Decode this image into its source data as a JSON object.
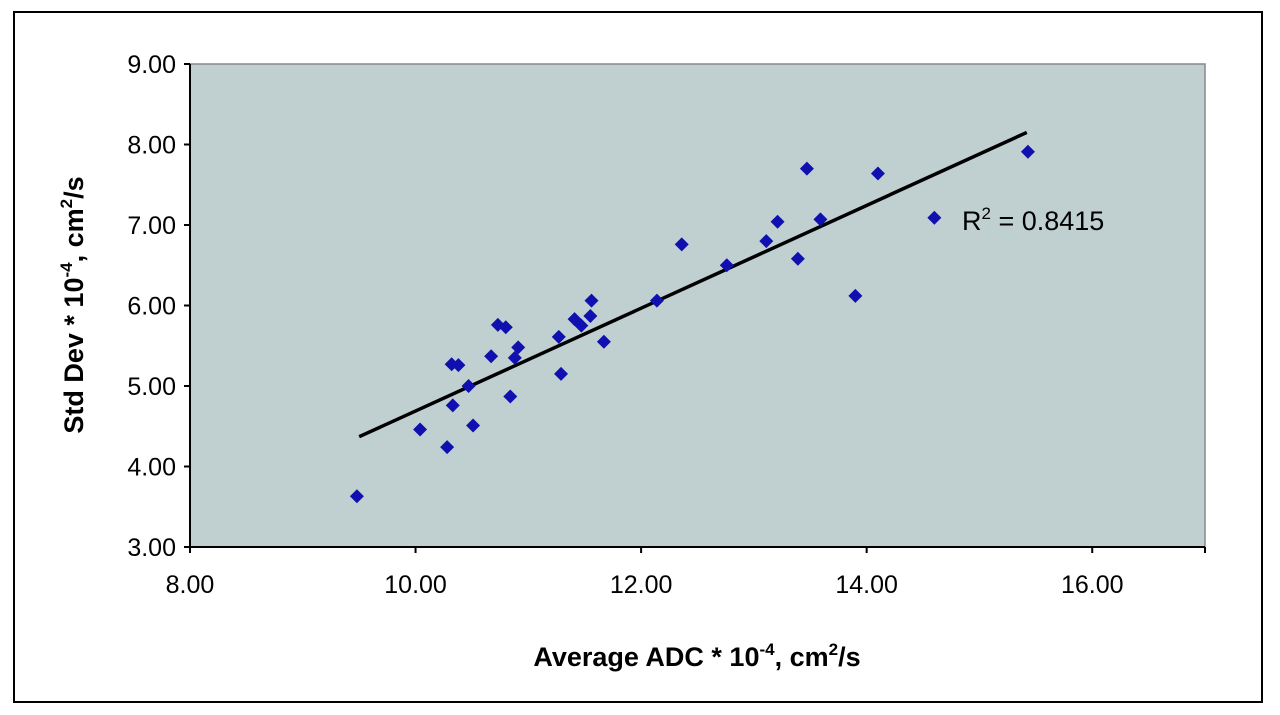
{
  "chart_data": {
    "type": "scatter",
    "title": "",
    "xlabel": {
      "prefix": "Average ADC * 10",
      "exp": "-4",
      "mid": ", cm",
      "exp2": "2",
      "suffix": "/s"
    },
    "ylabel": {
      "prefix": "Std Dev * 10",
      "exp": "-4",
      "mid": ", cm",
      "exp2": "2",
      "suffix": "/s"
    },
    "xlim": [
      8,
      17
    ],
    "ylim": [
      3,
      9
    ],
    "x_ticks": [
      "8.00",
      "10.00",
      "12.00",
      "14.00",
      "16.00"
    ],
    "x_tick_values": [
      8,
      10,
      12,
      14,
      16
    ],
    "y_ticks": [
      "3.00",
      "4.00",
      "5.00",
      "6.00",
      "7.00",
      "8.00",
      "9.00"
    ],
    "y_tick_values": [
      3,
      4,
      5,
      6,
      7,
      8,
      9
    ],
    "grid": false,
    "plot_background": "#c0d0d0",
    "marker_color": "#1010b0",
    "trendline_color": "#000000",
    "trendline": {
      "x": [
        9.5,
        15.42
      ],
      "y": [
        4.37,
        8.15
      ]
    },
    "annotation": {
      "prefix": "R",
      "exp": "2",
      "suffix": " = 0.8415"
    },
    "points": [
      {
        "x": 9.48,
        "y": 3.63
      },
      {
        "x": 10.04,
        "y": 4.46
      },
      {
        "x": 10.28,
        "y": 4.24
      },
      {
        "x": 10.33,
        "y": 4.76
      },
      {
        "x": 10.32,
        "y": 5.27
      },
      {
        "x": 10.38,
        "y": 5.26
      },
      {
        "x": 10.47,
        "y": 5.0
      },
      {
        "x": 10.51,
        "y": 4.51
      },
      {
        "x": 10.67,
        "y": 5.37
      },
      {
        "x": 10.73,
        "y": 5.76
      },
      {
        "x": 10.8,
        "y": 5.73
      },
      {
        "x": 10.84,
        "y": 4.87
      },
      {
        "x": 10.88,
        "y": 5.35
      },
      {
        "x": 10.91,
        "y": 5.48
      },
      {
        "x": 11.27,
        "y": 5.61
      },
      {
        "x": 11.29,
        "y": 5.15
      },
      {
        "x": 11.41,
        "y": 5.83
      },
      {
        "x": 11.47,
        "y": 5.75
      },
      {
        "x": 11.55,
        "y": 5.87
      },
      {
        "x": 11.56,
        "y": 6.06
      },
      {
        "x": 11.67,
        "y": 5.55
      },
      {
        "x": 12.14,
        "y": 6.06
      },
      {
        "x": 12.36,
        "y": 6.76
      },
      {
        "x": 12.76,
        "y": 6.5
      },
      {
        "x": 13.11,
        "y": 6.8
      },
      {
        "x": 13.21,
        "y": 7.04
      },
      {
        "x": 13.39,
        "y": 6.58
      },
      {
        "x": 13.47,
        "y": 7.7
      },
      {
        "x": 13.59,
        "y": 7.07
      },
      {
        "x": 13.9,
        "y": 6.12
      },
      {
        "x": 14.1,
        "y": 7.64
      },
      {
        "x": 14.6,
        "y": 7.09
      },
      {
        "x": 15.43,
        "y": 7.91
      }
    ]
  }
}
